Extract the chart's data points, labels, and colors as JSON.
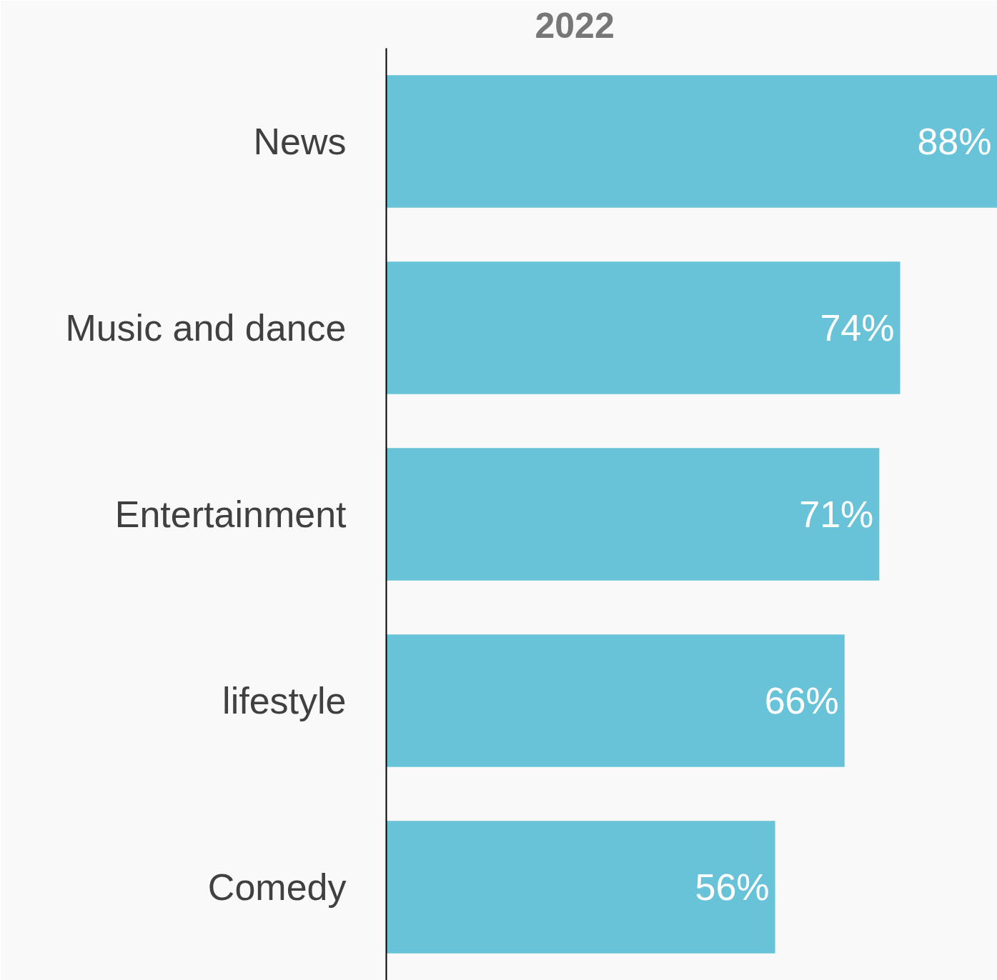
{
  "chart_data": {
    "type": "bar",
    "orientation": "horizontal",
    "title": "2022",
    "categories": [
      "News",
      "Music and dance",
      "Entertainment",
      "lifestyle",
      "Comedy"
    ],
    "values": [
      88,
      74,
      71,
      66,
      56
    ],
    "value_labels": [
      "88%",
      "74%",
      "71%",
      "66%",
      "56%"
    ],
    "color": "#68c3d8",
    "tick_labels": "y",
    "grid": false
  }
}
